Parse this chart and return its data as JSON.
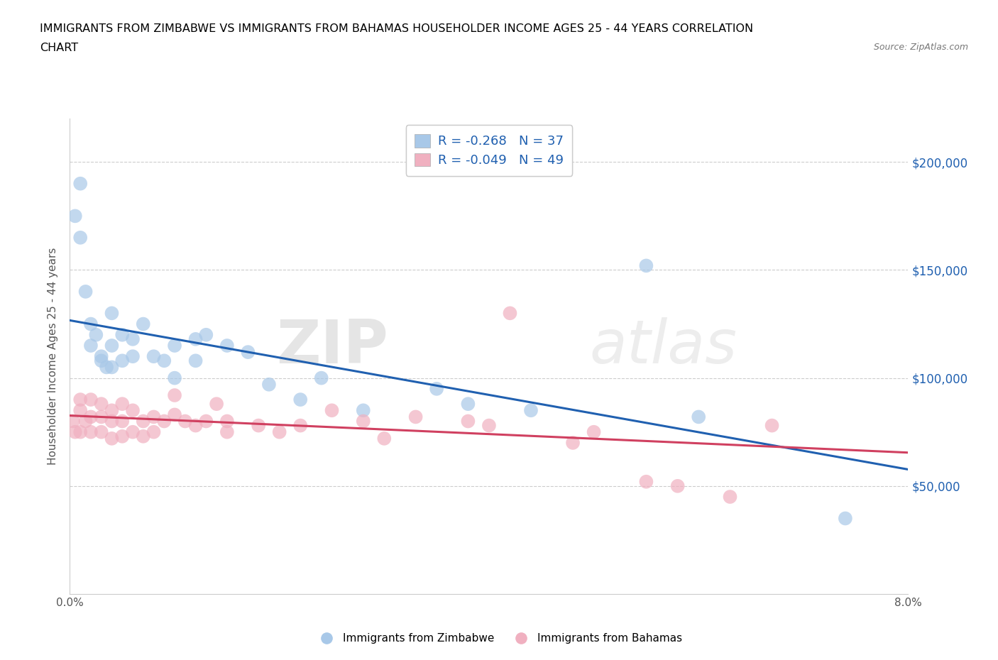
{
  "title_line1": "IMMIGRANTS FROM ZIMBABWE VS IMMIGRANTS FROM BAHAMAS HOUSEHOLDER INCOME AGES 25 - 44 YEARS CORRELATION",
  "title_line2": "CHART",
  "source": "Source: ZipAtlas.com",
  "ylabel": "Householder Income Ages 25 - 44 years",
  "xlim": [
    0.0,
    0.08
  ],
  "ylim": [
    0,
    220000
  ],
  "xticks": [
    0.0,
    0.01,
    0.02,
    0.03,
    0.04,
    0.05,
    0.06,
    0.07,
    0.08
  ],
  "ytick_vals": [
    0,
    50000,
    100000,
    150000,
    200000
  ],
  "ytick_labels": [
    "",
    "$50,000",
    "$100,000",
    "$150,000",
    "$200,000"
  ],
  "zimbabwe_color": "#a8c8e8",
  "bahamas_color": "#f0b0c0",
  "zimbabwe_line_color": "#2060b0",
  "bahamas_line_color": "#d04060",
  "R_zimbabwe": -0.268,
  "N_zimbabwe": 37,
  "R_bahamas": -0.049,
  "N_bahamas": 49,
  "legend_label_zimbabwe": "Immigrants from Zimbabwe",
  "legend_label_bahamas": "Immigrants from Bahamas",
  "watermark_zip": "ZIP",
  "watermark_atlas": "atlas",
  "zimbabwe_x": [
    0.0005,
    0.001,
    0.001,
    0.0015,
    0.002,
    0.002,
    0.0025,
    0.003,
    0.003,
    0.0035,
    0.004,
    0.004,
    0.004,
    0.005,
    0.005,
    0.006,
    0.006,
    0.007,
    0.008,
    0.009,
    0.01,
    0.01,
    0.012,
    0.012,
    0.013,
    0.015,
    0.017,
    0.019,
    0.022,
    0.024,
    0.028,
    0.035,
    0.038,
    0.044,
    0.055,
    0.06,
    0.074
  ],
  "zimbabwe_y": [
    175000,
    190000,
    165000,
    140000,
    125000,
    115000,
    120000,
    110000,
    108000,
    105000,
    130000,
    115000,
    105000,
    120000,
    108000,
    118000,
    110000,
    125000,
    110000,
    108000,
    100000,
    115000,
    118000,
    108000,
    120000,
    115000,
    112000,
    97000,
    90000,
    100000,
    85000,
    95000,
    88000,
    85000,
    152000,
    82000,
    35000
  ],
  "bahamas_x": [
    0.0003,
    0.0005,
    0.001,
    0.001,
    0.001,
    0.0015,
    0.002,
    0.002,
    0.002,
    0.003,
    0.003,
    0.003,
    0.004,
    0.004,
    0.004,
    0.005,
    0.005,
    0.005,
    0.006,
    0.006,
    0.007,
    0.007,
    0.008,
    0.008,
    0.009,
    0.01,
    0.01,
    0.011,
    0.012,
    0.013,
    0.014,
    0.015,
    0.015,
    0.018,
    0.02,
    0.022,
    0.025,
    0.028,
    0.03,
    0.033,
    0.038,
    0.04,
    0.042,
    0.048,
    0.05,
    0.055,
    0.058,
    0.063,
    0.067
  ],
  "bahamas_y": [
    80000,
    75000,
    90000,
    85000,
    75000,
    80000,
    90000,
    82000,
    75000,
    88000,
    82000,
    75000,
    85000,
    80000,
    72000,
    88000,
    80000,
    73000,
    85000,
    75000,
    80000,
    73000,
    82000,
    75000,
    80000,
    92000,
    83000,
    80000,
    78000,
    80000,
    88000,
    80000,
    75000,
    78000,
    75000,
    78000,
    85000,
    80000,
    72000,
    82000,
    80000,
    78000,
    130000,
    70000,
    75000,
    52000,
    50000,
    45000,
    78000
  ]
}
